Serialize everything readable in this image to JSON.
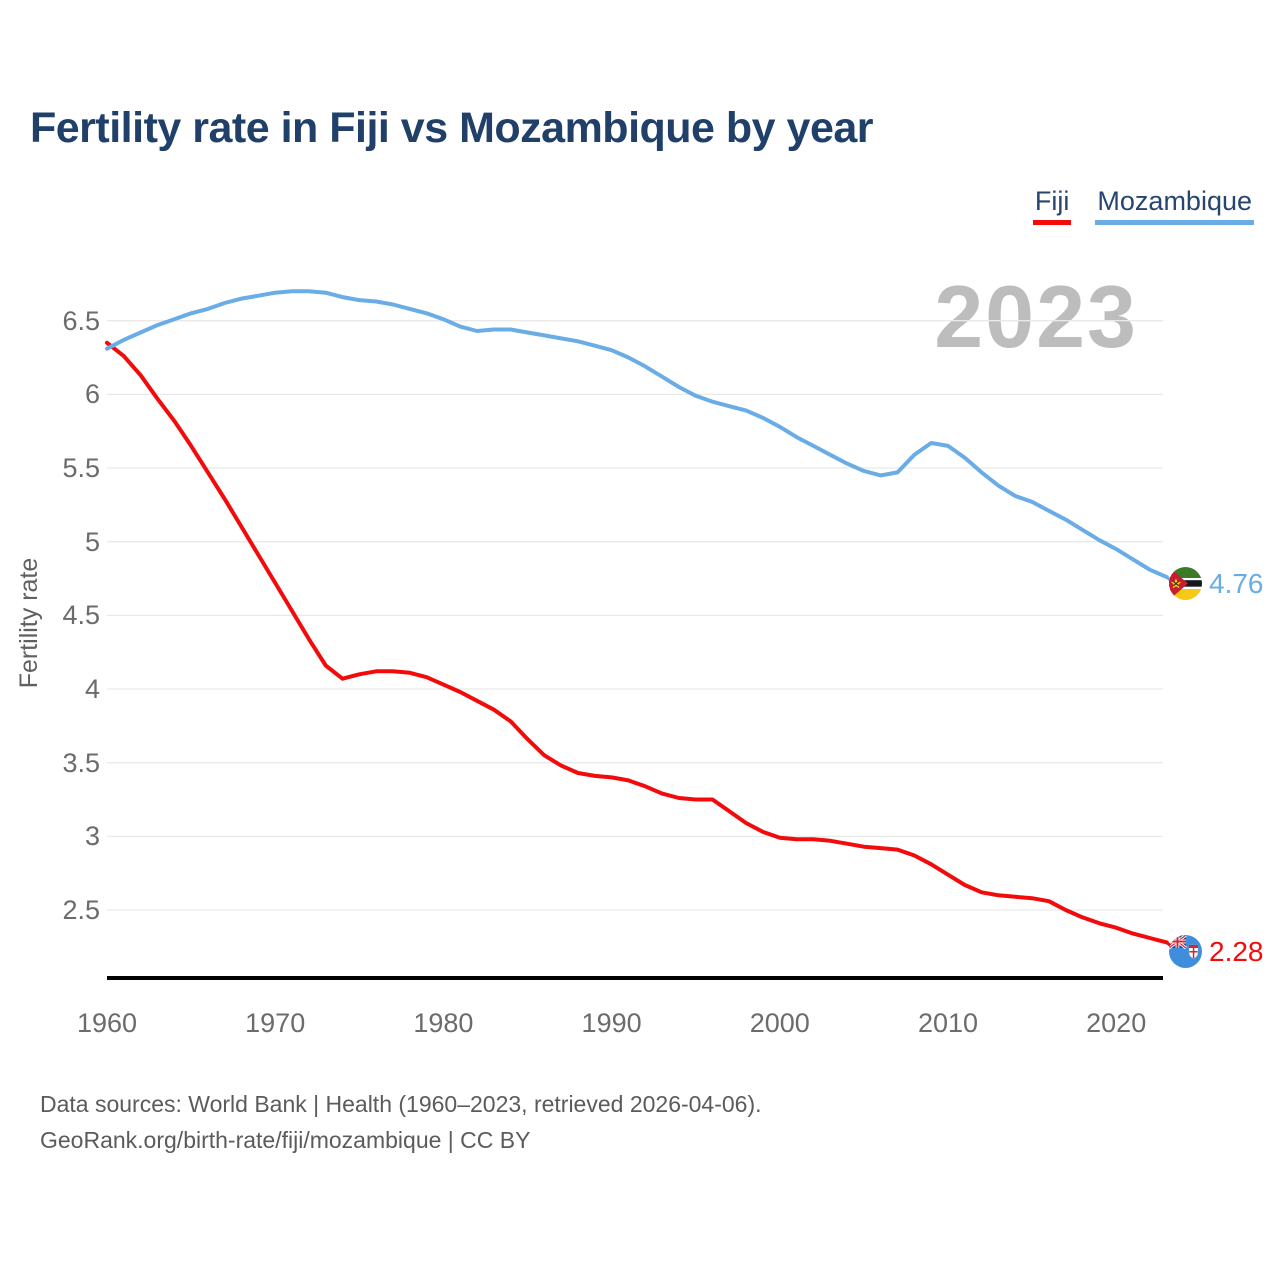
{
  "title": "Fertility rate in Fiji vs Mozambique by year",
  "watermark": "2023",
  "legend": [
    {
      "label": "Fiji",
      "color": "#f30b0b"
    },
    {
      "label": "Mozambique",
      "color": "#69ace6"
    }
  ],
  "y_axis_label": "Fertility rate",
  "end_labels": {
    "mozambique": {
      "value": "4.76",
      "flag": "mozambique-flag-icon"
    },
    "fiji": {
      "value": "2.28",
      "flag": "fiji-flag-icon"
    }
  },
  "footer": {
    "line1": "Data sources: World Bank | Health (1960–2023, retrieved 2026-04-06).",
    "line2": "GeoRank.org/birth-rate/fiji/mozambique | CC BY"
  },
  "chart_data": {
    "type": "line",
    "title": "Fertility rate in Fiji vs Mozambique by year",
    "xlabel": "",
    "ylabel": "Fertility rate",
    "watermark": "2023",
    "grid": "horizontal",
    "legend_position": "top-right",
    "x_range": [
      1960,
      2023
    ],
    "ylim": [
      2.1,
      6.8
    ],
    "yticks": [
      6.5,
      6,
      5.5,
      5,
      4.5,
      4,
      3.5,
      3,
      2.5
    ],
    "xticks": [
      1960,
      1970,
      1980,
      1990,
      2000,
      2010,
      2020
    ],
    "x": [
      1960,
      1961,
      1962,
      1963,
      1964,
      1965,
      1966,
      1967,
      1968,
      1969,
      1970,
      1971,
      1972,
      1973,
      1974,
      1975,
      1976,
      1977,
      1978,
      1979,
      1980,
      1981,
      1982,
      1983,
      1984,
      1985,
      1986,
      1987,
      1988,
      1989,
      1990,
      1991,
      1992,
      1993,
      1994,
      1995,
      1996,
      1997,
      1998,
      1999,
      2000,
      2001,
      2002,
      2003,
      2004,
      2005,
      2006,
      2007,
      2008,
      2009,
      2010,
      2011,
      2012,
      2013,
      2014,
      2015,
      2016,
      2017,
      2018,
      2019,
      2020,
      2021,
      2022,
      2023
    ],
    "series": [
      {
        "name": "Fiji",
        "color": "#f30b0b",
        "end_label": "2.28",
        "values": [
          6.35,
          6.26,
          6.13,
          5.97,
          5.82,
          5.65,
          5.47,
          5.29,
          5.1,
          4.91,
          4.72,
          4.53,
          4.34,
          4.16,
          4.07,
          4.1,
          4.12,
          4.12,
          4.11,
          4.08,
          4.03,
          3.98,
          3.92,
          3.86,
          3.78,
          3.66,
          3.55,
          3.48,
          3.43,
          3.41,
          3.4,
          3.38,
          3.34,
          3.29,
          3.26,
          3.25,
          3.25,
          3.17,
          3.09,
          3.03,
          2.99,
          2.98,
          2.98,
          2.97,
          2.95,
          2.93,
          2.92,
          2.91,
          2.87,
          2.81,
          2.74,
          2.67,
          2.62,
          2.6,
          2.59,
          2.58,
          2.56,
          2.5,
          2.45,
          2.41,
          2.38,
          2.34,
          2.31,
          2.28
        ]
      },
      {
        "name": "Mozambique",
        "color": "#69ace6",
        "end_label": "4.76",
        "values": [
          6.31,
          6.37,
          6.42,
          6.47,
          6.51,
          6.55,
          6.58,
          6.62,
          6.65,
          6.67,
          6.69,
          6.7,
          6.7,
          6.69,
          6.66,
          6.64,
          6.63,
          6.61,
          6.58,
          6.55,
          6.51,
          6.46,
          6.43,
          6.44,
          6.44,
          6.42,
          6.4,
          6.38,
          6.36,
          6.33,
          6.3,
          6.25,
          6.19,
          6.12,
          6.05,
          5.99,
          5.95,
          5.92,
          5.89,
          5.84,
          5.78,
          5.71,
          5.65,
          5.59,
          5.53,
          5.48,
          5.45,
          5.47,
          5.59,
          5.67,
          5.65,
          5.57,
          5.47,
          5.38,
          5.31,
          5.27,
          5.21,
          5.15,
          5.08,
          5.01,
          4.95,
          4.88,
          4.81,
          4.76
        ]
      }
    ]
  }
}
